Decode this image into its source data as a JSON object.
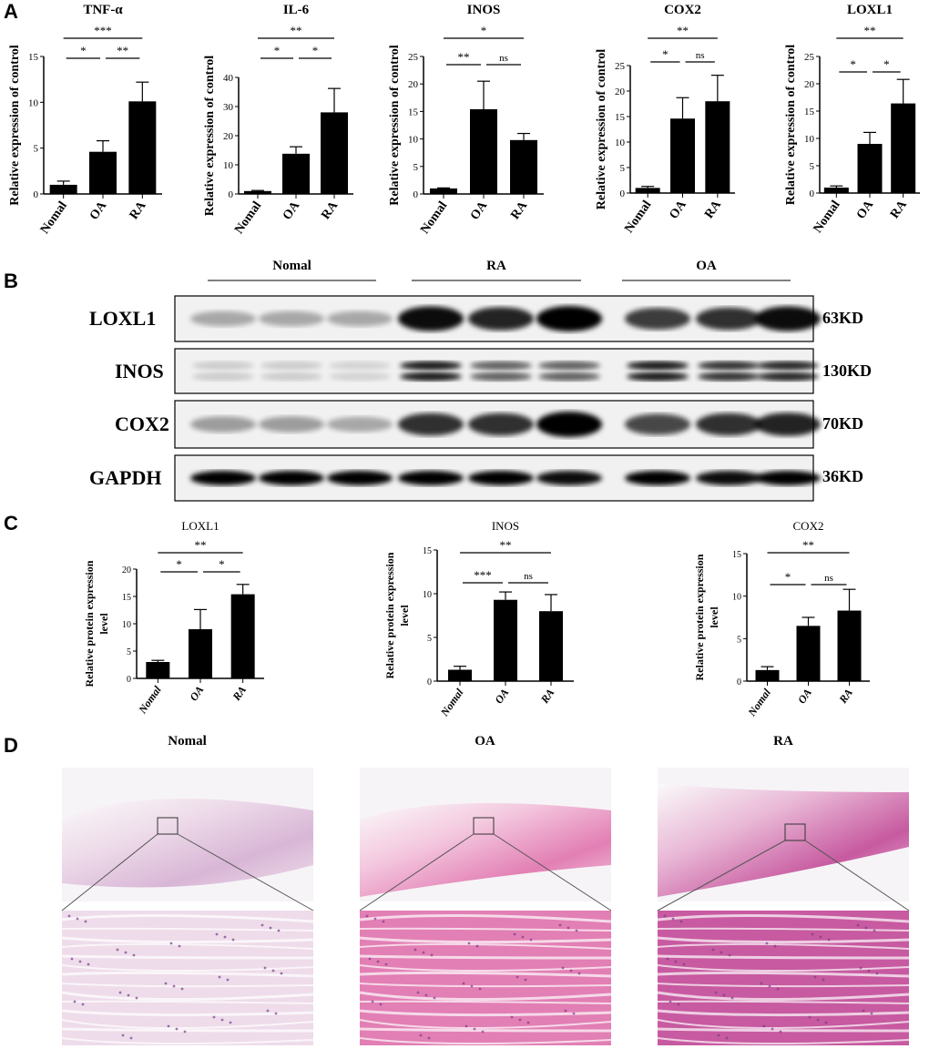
{
  "panels": {
    "a": "A",
    "b": "B",
    "c": "C",
    "d": "D"
  },
  "chart_data": [
    {
      "panel": "A",
      "type": "bar",
      "title": "TNF-α",
      "ylabel": "Relative expression of control",
      "categories": [
        "Nomal",
        "OA",
        "RA"
      ],
      "values": [
        1.0,
        4.6,
        10.1
      ],
      "errors": [
        0.4,
        1.2,
        2.1
      ],
      "ylim": [
        0,
        15
      ],
      "ticks": [
        0,
        5,
        10,
        15
      ],
      "significance": [
        {
          "pair": [
            "Nomal",
            "OA"
          ],
          "label": "*"
        },
        {
          "pair": [
            "OA",
            "RA"
          ],
          "label": "**"
        },
        {
          "pair": [
            "Nomal",
            "RA"
          ],
          "label": "***"
        }
      ]
    },
    {
      "panel": "A",
      "type": "bar",
      "title": "IL-6",
      "ylabel": "Relative expression of control",
      "categories": [
        "Nomal",
        "OA",
        "RA"
      ],
      "values": [
        1.0,
        13.8,
        28.0
      ],
      "errors": [
        0.2,
        2.4,
        8.2
      ],
      "ylim": [
        0,
        40
      ],
      "ticks": [
        0,
        10,
        20,
        30,
        40
      ],
      "significance": [
        {
          "pair": [
            "Nomal",
            "OA"
          ],
          "label": "*"
        },
        {
          "pair": [
            "OA",
            "RA"
          ],
          "label": "*"
        },
        {
          "pair": [
            "Nomal",
            "RA"
          ],
          "label": "**"
        }
      ]
    },
    {
      "panel": "A",
      "type": "bar",
      "title": "INOS",
      "ylabel": "Relative expression of control",
      "categories": [
        "Nomal",
        "OA",
        "RA"
      ],
      "values": [
        1.0,
        15.4,
        9.8
      ],
      "errors": [
        0.1,
        5.1,
        1.2
      ],
      "ylim": [
        0,
        25
      ],
      "ticks": [
        0,
        5,
        10,
        15,
        20,
        25
      ],
      "significance": [
        {
          "pair": [
            "Nomal",
            "OA"
          ],
          "label": "**"
        },
        {
          "pair": [
            "OA",
            "RA"
          ],
          "label": "ns"
        },
        {
          "pair": [
            "Nomal",
            "RA"
          ],
          "label": "*"
        }
      ]
    },
    {
      "panel": "A",
      "type": "bar",
      "title": "COX2",
      "ylabel": "Relative expression of control",
      "categories": [
        "Nomal",
        "OA",
        "RA"
      ],
      "values": [
        1.0,
        14.6,
        18.0
      ],
      "errors": [
        0.3,
        4.1,
        5.1
      ],
      "ylim": [
        0,
        25
      ],
      "ticks": [
        0,
        5,
        10,
        15,
        20,
        25
      ],
      "significance": [
        {
          "pair": [
            "Nomal",
            "OA"
          ],
          "label": "*"
        },
        {
          "pair": [
            "OA",
            "RA"
          ],
          "label": "ns"
        },
        {
          "pair": [
            "Nomal",
            "RA"
          ],
          "label": "**"
        }
      ]
    },
    {
      "panel": "A",
      "type": "bar",
      "title": "LOXL1",
      "ylabel": "Relative expression of control",
      "categories": [
        "Nomal",
        "OA",
        "RA"
      ],
      "values": [
        1.0,
        9.0,
        16.4
      ],
      "errors": [
        0.3,
        2.1,
        4.4
      ],
      "ylim": [
        0,
        25
      ],
      "ticks": [
        0,
        5,
        10,
        15,
        20,
        25
      ],
      "significance": [
        {
          "pair": [
            "Nomal",
            "OA"
          ],
          "label": "*"
        },
        {
          "pair": [
            "OA",
            "RA"
          ],
          "label": "*"
        },
        {
          "pair": [
            "Nomal",
            "RA"
          ],
          "label": "**"
        }
      ]
    },
    {
      "panel": "C",
      "type": "bar",
      "title": "LOXL1",
      "ylabel": "Relative protein expression level",
      "categories": [
        "Nomal",
        "OA",
        "RA"
      ],
      "values": [
        3.0,
        9.0,
        15.4
      ],
      "errors": [
        0.3,
        3.6,
        1.8
      ],
      "ylim": [
        0,
        20
      ],
      "ticks": [
        0,
        5,
        10,
        15,
        20
      ],
      "significance": [
        {
          "pair": [
            "Nomal",
            "OA"
          ],
          "label": "*"
        },
        {
          "pair": [
            "OA",
            "RA"
          ],
          "label": "*"
        },
        {
          "pair": [
            "Nomal",
            "RA"
          ],
          "label": "**"
        }
      ]
    },
    {
      "panel": "C",
      "type": "bar",
      "title": "INOS",
      "ylabel": "Relative protein expression level",
      "categories": [
        "Nomal",
        "OA",
        "RA"
      ],
      "values": [
        1.3,
        9.3,
        8.0
      ],
      "errors": [
        0.4,
        0.9,
        1.9
      ],
      "ylim": [
        0,
        15
      ],
      "ticks": [
        0,
        5,
        10,
        15
      ],
      "significance": [
        {
          "pair": [
            "Nomal",
            "OA"
          ],
          "label": "***"
        },
        {
          "pair": [
            "OA",
            "RA"
          ],
          "label": "ns"
        },
        {
          "pair": [
            "Nomal",
            "RA"
          ],
          "label": "**"
        }
      ]
    },
    {
      "panel": "C",
      "type": "bar",
      "title": "COX2",
      "ylabel": "Relative protein expression level",
      "categories": [
        "Nomal",
        "OA",
        "RA"
      ],
      "values": [
        1.3,
        6.5,
        8.3
      ],
      "errors": [
        0.4,
        1.0,
        2.5
      ],
      "ylim": [
        0,
        15
      ],
      "ticks": [
        0,
        5,
        10,
        15
      ],
      "significance": [
        {
          "pair": [
            "Nomal",
            "OA"
          ],
          "label": "*"
        },
        {
          "pair": [
            "OA",
            "RA"
          ],
          "label": "ns"
        },
        {
          "pair": [
            "Nomal",
            "RA"
          ],
          "label": "**"
        }
      ]
    }
  ],
  "blot": {
    "groups": [
      "Nomal",
      "RA",
      "OA"
    ],
    "rows": [
      {
        "protein": "LOXL1",
        "size": "63KD"
      },
      {
        "protein": "INOS",
        "size": "130KD"
      },
      {
        "protein": "COX2",
        "size": "70KD"
      },
      {
        "protein": "GAPDH",
        "size": "36KD"
      }
    ]
  },
  "histology": {
    "groups": [
      "Nomal",
      "OA",
      "RA"
    ]
  },
  "colors": {
    "bar": "#000000",
    "he_pink": "#e8a6c8",
    "he_purple": "#7a3a8a"
  }
}
